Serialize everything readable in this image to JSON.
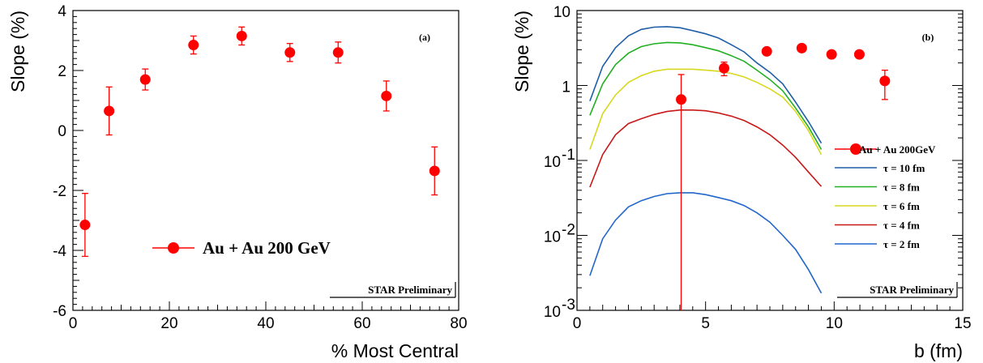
{
  "chart_data": [
    {
      "type": "scatter",
      "panel_label": "(a)",
      "xlabel": "% Most Central",
      "ylabel": "Slope (%)",
      "xlim": [
        0,
        80
      ],
      "ylim": [
        -6,
        4
      ],
      "x_ticks": [
        0,
        20,
        40,
        60,
        80
      ],
      "y_ticks": [
        -6,
        -4,
        -2,
        0,
        2,
        4
      ],
      "x_tick_labels": [
        "0",
        "20",
        "40",
        "60",
        "80"
      ],
      "y_tick_labels": [
        "-6",
        "-4",
        "-2",
        "0",
        "2",
        "4"
      ],
      "legend_position": "bottom-center",
      "watermark": "STAR Preliminary",
      "series": [
        {
          "name": "Au + Au 200 GeV",
          "color": "#ff0000",
          "x": [
            2.5,
            7.5,
            15,
            25,
            35,
            45,
            55,
            65,
            75
          ],
          "y": [
            -3.15,
            0.65,
            1.7,
            2.85,
            3.15,
            2.6,
            2.6,
            1.15,
            -1.35
          ],
          "err": [
            1.05,
            0.8,
            0.35,
            0.3,
            0.3,
            0.3,
            0.35,
            0.5,
            0.8
          ]
        }
      ]
    },
    {
      "type": "line",
      "panel_label": "(b)",
      "xlabel": "b (fm)",
      "ylabel": "Slope (%)",
      "xlim": [
        0,
        15
      ],
      "ylim": [
        0.001,
        10
      ],
      "yscale": "log",
      "x_ticks": [
        0,
        5,
        10,
        15
      ],
      "x_tick_labels": [
        "0",
        "5",
        "10",
        "15"
      ],
      "y_ticks": [
        {
          "value": 0.001,
          "base": "10",
          "exp": "-3"
        },
        {
          "value": 0.01,
          "base": "10",
          "exp": "-2"
        },
        {
          "value": 0.1,
          "base": "10",
          "exp": "-1"
        },
        {
          "value": 1,
          "base": "1",
          "exp": ""
        },
        {
          "value": 10,
          "base": "10",
          "exp": ""
        }
      ],
      "legend_position": "right",
      "watermark": "STAR Preliminary",
      "points": {
        "name": "Au + Au 200GeV",
        "color": "#ff0000",
        "x": [
          4.05,
          5.72,
          7.38,
          8.74,
          9.9,
          10.98,
          11.97
        ],
        "y": [
          0.65,
          1.7,
          2.85,
          3.15,
          2.6,
          2.6,
          1.15
        ],
        "y_low": [
          0.001,
          1.35,
          2.85,
          3.15,
          2.6,
          2.6,
          0.65
        ],
        "y_high": [
          1.4,
          2.05,
          2.85,
          3.15,
          2.6,
          2.6,
          1.6
        ]
      },
      "curves_x": [
        0.5,
        1.0,
        1.5,
        2.0,
        2.5,
        3.0,
        3.5,
        4.0,
        4.5,
        5.0,
        5.5,
        6.0,
        6.5,
        7.0,
        7.5,
        8.0,
        8.5,
        9.0,
        9.5
      ],
      "series": [
        {
          "name": "τ = 10 fm",
          "color": "#1f5fa8",
          "values": [
            0.62,
            1.8,
            3.2,
            4.6,
            5.6,
            6.0,
            6.1,
            5.9,
            5.4,
            4.9,
            4.3,
            3.5,
            2.8,
            2.0,
            1.5,
            1.05,
            0.6,
            0.33,
            0.17
          ]
        },
        {
          "name": "τ = 8 fm",
          "color": "#22b022",
          "values": [
            0.4,
            1.05,
            1.9,
            2.7,
            3.3,
            3.6,
            3.75,
            3.7,
            3.5,
            3.2,
            2.9,
            2.5,
            2.1,
            1.6,
            1.2,
            0.85,
            0.5,
            0.28,
            0.14
          ]
        },
        {
          "name": "τ = 6 fm",
          "color": "#d8d820",
          "values": [
            0.14,
            0.42,
            0.75,
            1.1,
            1.35,
            1.55,
            1.65,
            1.65,
            1.65,
            1.6,
            1.55,
            1.45,
            1.3,
            1.1,
            0.9,
            0.7,
            0.45,
            0.25,
            0.12
          ]
        },
        {
          "name": "τ = 4 fm",
          "color": "#c81818",
          "values": [
            0.044,
            0.12,
            0.22,
            0.31,
            0.36,
            0.41,
            0.45,
            0.47,
            0.47,
            0.46,
            0.43,
            0.39,
            0.34,
            0.28,
            0.22,
            0.16,
            0.11,
            0.07,
            0.045
          ]
        },
        {
          "name": "τ = 2 fm",
          "color": "#2266cc",
          "values": [
            0.0029,
            0.009,
            0.016,
            0.024,
            0.029,
            0.033,
            0.036,
            0.037,
            0.037,
            0.035,
            0.032,
            0.029,
            0.025,
            0.02,
            0.015,
            0.01,
            0.0065,
            0.0035,
            0.0017
          ]
        }
      ]
    }
  ]
}
